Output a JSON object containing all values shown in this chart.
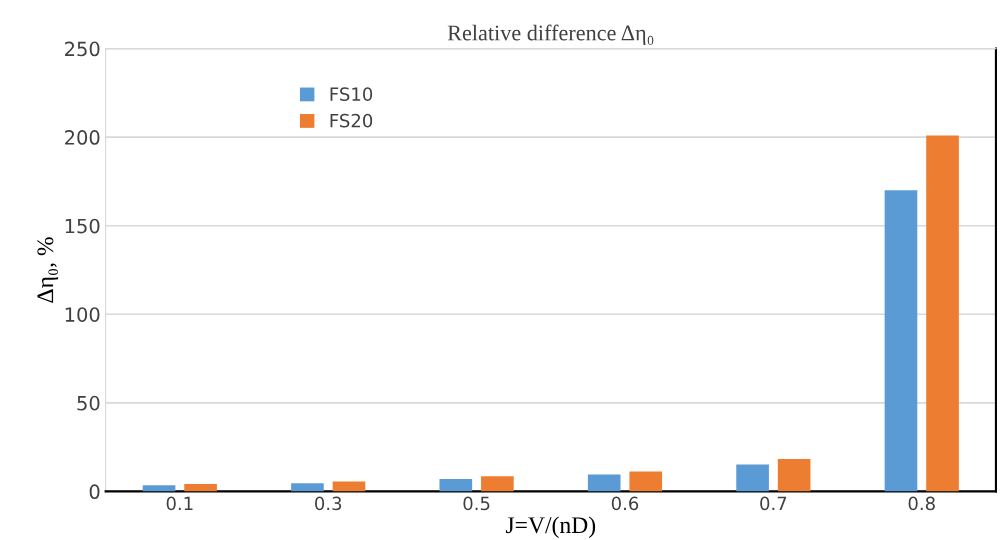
{
  "chart_data": {
    "type": "bar",
    "title": "Relative difference Δη₀",
    "xlabel": "J=V/(nD)",
    "ylabel": "Δη₀, %",
    "categories": [
      "0.1",
      "0.3",
      "0.5",
      "0.6",
      "0.7",
      "0.8"
    ],
    "series": [
      {
        "name": "FS10",
        "color": "#5b9bd5",
        "values": [
          3.5,
          4.6,
          7.0,
          9.5,
          15.2,
          170
        ]
      },
      {
        "name": "FS20",
        "color": "#ed7d31",
        "values": [
          4.2,
          5.6,
          8.5,
          11.3,
          18.3,
          201
        ]
      }
    ],
    "ylim": [
      0,
      250
    ],
    "yticks": [
      0,
      50,
      100,
      150,
      200,
      250
    ],
    "grid": "y",
    "legend": "top left"
  }
}
